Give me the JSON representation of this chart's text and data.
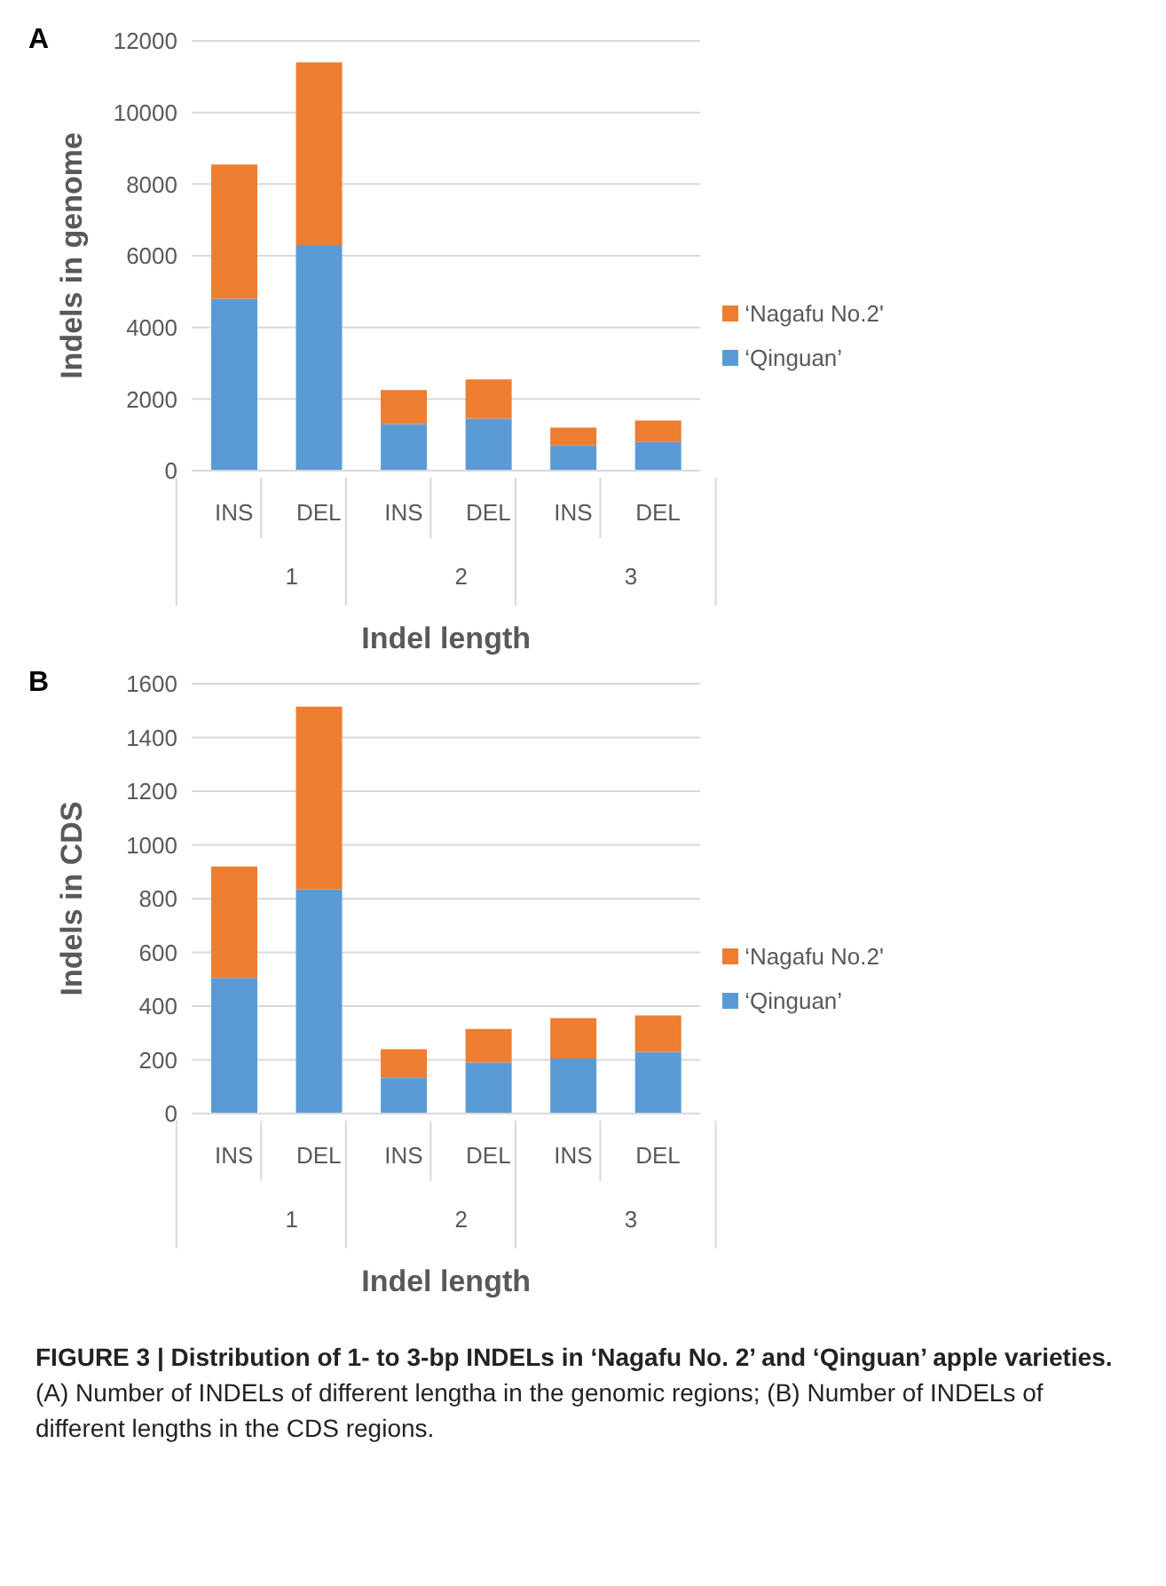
{
  "chart_data": [
    {
      "type": "bar",
      "title": "A",
      "ylabel": "Indels in genome",
      "xlabel": "Indel length",
      "categories": [
        "INS",
        "DEL",
        "INS",
        "DEL",
        "INS",
        "DEL"
      ],
      "annotations": [
        "1",
        "2",
        "3"
      ],
      "stacked": true,
      "ylim": [
        0,
        12000
      ],
      "yticks": [
        0,
        2000,
        4000,
        6000,
        8000,
        10000,
        12000
      ],
      "grid": "y",
      "legend": "right",
      "series": [
        {
          "name": "‘Qinguan’",
          "color": "#5b9bd5",
          "values": [
            4800,
            6300,
            1300,
            1450,
            700,
            800
          ]
        },
        {
          "name": "‘Nagafu No.2'",
          "color": "#ed7d31",
          "values": [
            3750,
            5100,
            950,
            1100,
            500,
            600
          ]
        }
      ]
    },
    {
      "type": "bar",
      "title": "B",
      "ylabel": "Indels in CDS",
      "xlabel": "Indel length",
      "categories": [
        "INS",
        "DEL",
        "INS",
        "DEL",
        "INS",
        "DEL"
      ],
      "annotations": [
        "1",
        "2",
        "3"
      ],
      "stacked": true,
      "ylim": [
        0,
        1600
      ],
      "yticks": [
        0,
        200,
        400,
        600,
        800,
        1000,
        1200,
        1400,
        1600
      ],
      "grid": "y",
      "legend": "right",
      "series": [
        {
          "name": "‘Qinguan’",
          "color": "#5b9bd5",
          "values": [
            505,
            835,
            135,
            190,
            205,
            230
          ]
        },
        {
          "name": "‘Nagafu No.2'",
          "color": "#ed7d31",
          "values": [
            415,
            680,
            105,
            125,
            150,
            135
          ]
        }
      ]
    },
    {
      "type": "other",
      "title": "FIGURE 3 | Distribution of 1- to 3-bp INDELs in ‘Nagafu No. 2’ and ‘Qinguan’ apple varieties.",
      "annotations": [
        "(A) Number of INDELs of different lengtha in the genomic regions; (B) Number of INDELs of different lengths in the CDS regions."
      ]
    }
  ]
}
